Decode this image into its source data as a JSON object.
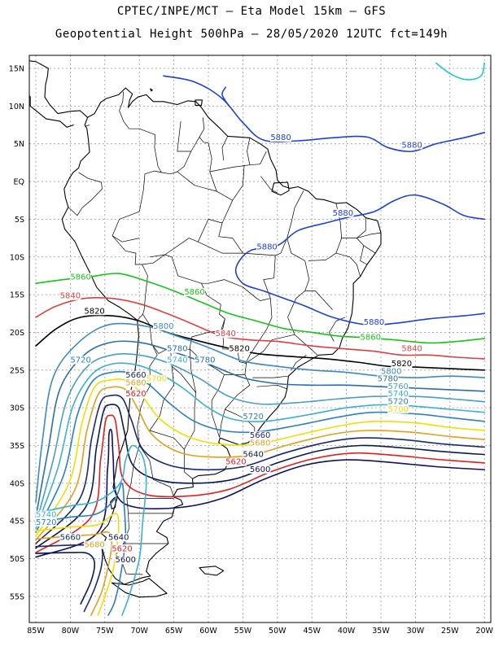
{
  "header": {
    "line1": "CPTEC/INPE/MCT –  Eta Model 15km – GFS",
    "line2": "Geopotential Height 500hPa – 28/05/2020 12UTC fct=149h"
  },
  "axes": {
    "lat_labels": [
      "15N",
      "10N",
      "5N",
      "EQ",
      "5S",
      "10S",
      "15S",
      "20S",
      "25S",
      "30S",
      "35S",
      "40S",
      "45S",
      "50S",
      "55S"
    ],
    "lon_labels": [
      "85W",
      "80W",
      "75W",
      "70W",
      "65W",
      "60W",
      "55W",
      "50W",
      "45W",
      "40W",
      "35W",
      "30W",
      "25W",
      "20W"
    ]
  },
  "colors": {
    "5880": "#1f3fd8",
    "5860": "#18c418",
    "5840": "#e04040",
    "5820": "#000000",
    "5800": "#3a8ac8",
    "5780": "#2a6ea8",
    "5760": "#4a9ec0",
    "5740": "#3bb0d0",
    "5720": "#2a7fc0",
    "5700": "#f0e000",
    "5680": "#e0a020",
    "5660": "#1a2a70",
    "5640": "#0a1a50",
    "5620": "#e02020",
    "5600": "#101060",
    "cyan": "#20c8c8"
  },
  "contour_labels": [
    {
      "text": "5880",
      "color": "5880",
      "lon": -49.5,
      "lat": 5.5
    },
    {
      "text": "5880",
      "color": "5880",
      "lon": -30.5,
      "lat": 4.5
    },
    {
      "text": "5880",
      "color": "5880",
      "lon": -40.5,
      "lat": -4.5
    },
    {
      "text": "5880",
      "color": "5880",
      "lon": -51.5,
      "lat": -9.0
    },
    {
      "text": "5880",
      "color": "5880",
      "lon": -36.0,
      "lat": -19.0
    },
    {
      "text": "5860",
      "color": "5860",
      "lon": -78.5,
      "lat": -13.0
    },
    {
      "text": "5860",
      "color": "5860",
      "lon": -62.0,
      "lat": -15.0
    },
    {
      "text": "5860",
      "color": "5860",
      "lon": -36.5,
      "lat": -21.0
    },
    {
      "text": "5840",
      "color": "5840",
      "lon": -80.0,
      "lat": -15.5
    },
    {
      "text": "5840",
      "color": "5840",
      "lon": -57.5,
      "lat": -20.5
    },
    {
      "text": "5840",
      "color": "5840",
      "lon": -30.5,
      "lat": -22.5
    },
    {
      "text": "5820",
      "color": "5820",
      "lon": -76.5,
      "lat": -17.5
    },
    {
      "text": "5820",
      "color": "5820",
      "lon": -55.5,
      "lat": -22.5
    },
    {
      "text": "5820",
      "color": "5820",
      "lon": -32.0,
      "lat": -24.5
    },
    {
      "text": "5800",
      "color": "5800",
      "lon": -66.5,
      "lat": -19.5
    },
    {
      "text": "5800",
      "color": "5800",
      "lon": -33.5,
      "lat": -25.5
    },
    {
      "text": "5780",
      "color": "5780",
      "lon": -64.5,
      "lat": -22.5
    },
    {
      "text": "5780",
      "color": "5780",
      "lon": -60.5,
      "lat": -24.0
    },
    {
      "text": "5780",
      "color": "5780",
      "lon": -34.0,
      "lat": -26.5
    },
    {
      "text": "5760",
      "color": "5760",
      "lon": -32.5,
      "lat": -27.5
    },
    {
      "text": "5740",
      "color": "5740",
      "lon": -64.5,
      "lat": -24.0
    },
    {
      "text": "5740",
      "color": "5740",
      "lon": -32.5,
      "lat": -28.5
    },
    {
      "text": "5740",
      "color": "5740",
      "lon": -83.5,
      "lat": -44.5
    },
    {
      "text": "5720",
      "color": "5720",
      "lon": -78.5,
      "lat": -24.0
    },
    {
      "text": "5720",
      "color": "5720",
      "lon": -53.5,
      "lat": -31.5
    },
    {
      "text": "5720",
      "color": "5720",
      "lon": -32.5,
      "lat": -29.5
    },
    {
      "text": "5720",
      "color": "5720",
      "lon": -83.5,
      "lat": -45.5
    },
    {
      "text": "5700",
      "color": "5700",
      "lon": -67.5,
      "lat": -26.5
    },
    {
      "text": "5700",
      "color": "5700",
      "lon": -32.5,
      "lat": -30.5
    },
    {
      "text": "5680",
      "color": "5680",
      "lon": -70.5,
      "lat": -27.0
    },
    {
      "text": "5680",
      "color": "5680",
      "lon": -52.5,
      "lat": -35.0
    },
    {
      "text": "5680",
      "color": "5680",
      "lon": -76.5,
      "lat": -48.5
    },
    {
      "text": "5660",
      "color": "5660",
      "lon": -70.5,
      "lat": -26.0
    },
    {
      "text": "5660",
      "color": "5660",
      "lon": -52.5,
      "lat": -34.0
    },
    {
      "text": "5660",
      "color": "5660",
      "lon": -80.0,
      "lat": -47.5
    },
    {
      "text": "5640",
      "color": "5640",
      "lon": -53.5,
      "lat": -36.5
    },
    {
      "text": "5640",
      "color": "5640",
      "lon": -73.0,
      "lat": -47.5
    },
    {
      "text": "5620",
      "color": "5620",
      "lon": -70.5,
      "lat": -28.5
    },
    {
      "text": "5620",
      "color": "5620",
      "lon": -56.0,
      "lat": -37.5
    },
    {
      "text": "5620",
      "color": "5620",
      "lon": -72.5,
      "lat": -49.0
    },
    {
      "text": "5600",
      "color": "5600",
      "lon": -52.5,
      "lat": -38.5
    },
    {
      "text": "5600",
      "color": "5600",
      "lon": -72.0,
      "lat": -50.5
    }
  ]
}
